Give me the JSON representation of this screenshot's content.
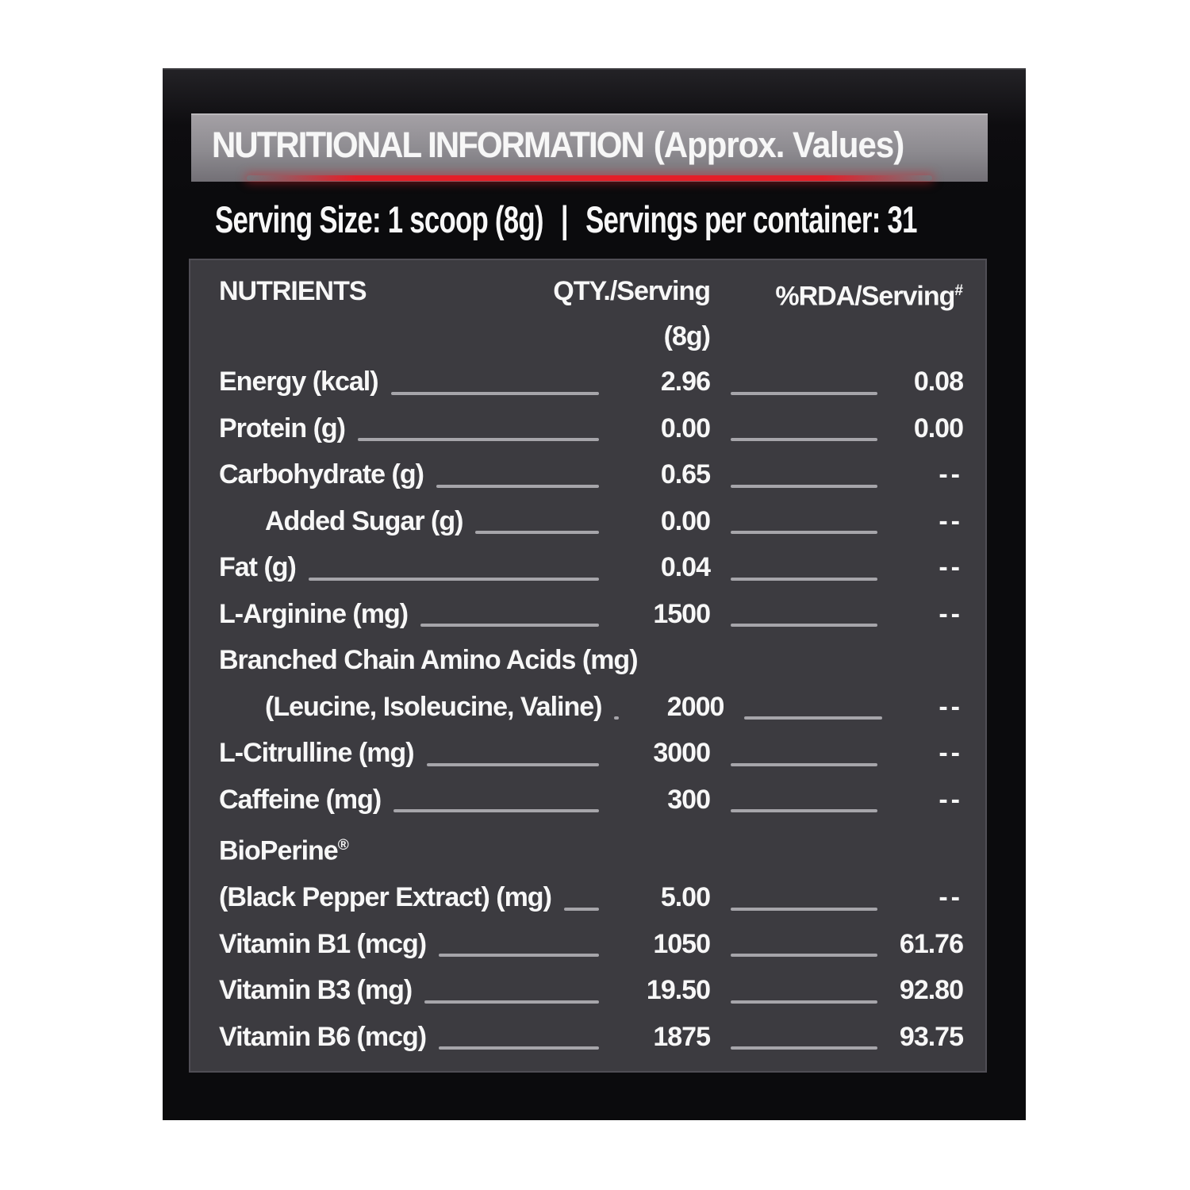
{
  "label": {
    "title_main": "NUTRITIONAL INFORMATION",
    "title_note": "(Approx. Values)",
    "serving": {
      "size_text": "Serving Size: 1 scoop (8g)",
      "separator": "|",
      "container_text": "Servings per container: 31"
    },
    "table": {
      "col_nutrients": "NUTRIENTS",
      "col_qty_line1": "QTY./Serving",
      "col_qty_line2": "(8g)",
      "col_rda": "%RDA/Serving",
      "col_rda_sup": "#",
      "rows": [
        {
          "label": "Energy (kcal)",
          "indent": false,
          "qty": "2.96",
          "rda": "0.08"
        },
        {
          "label": "Protein (g)",
          "indent": false,
          "qty": "0.00",
          "rda": "0.00"
        },
        {
          "label": "Carbohydrate (g)",
          "indent": false,
          "qty": "0.65",
          "rda": "--"
        },
        {
          "label": "Added Sugar (g)",
          "indent": true,
          "qty": "0.00",
          "rda": "--"
        },
        {
          "label": "Fat (g)",
          "indent": false,
          "qty": "0.04",
          "rda": "--"
        },
        {
          "label": "L-Arginine (mg)",
          "indent": false,
          "qty": "1500",
          "rda": "--"
        },
        {
          "label": "Branched Chain Amino Acids (mg)",
          "indent": false,
          "qty": "",
          "rda": ""
        },
        {
          "label": "(Leucine, Isoleucine, Valine)",
          "indent": true,
          "qty": "2000",
          "rda": "--"
        },
        {
          "label": "L-Citrulline (mg)",
          "indent": false,
          "qty": "3000",
          "rda": "--"
        },
        {
          "label": "Caffeine (mg)",
          "indent": false,
          "qty": "300",
          "rda": "--"
        },
        {
          "label": "BioPerine",
          "sup": "®",
          "indent": false,
          "qty": "",
          "rda": ""
        },
        {
          "label": "(Black Pepper Extract) (mg)",
          "indent": false,
          "qty": "5.00",
          "rda": "--"
        },
        {
          "label": "Vitamin B1 (mcg)",
          "indent": false,
          "qty": "1050",
          "rda": "61.76"
        },
        {
          "label": "Vitamin B3 (mg)",
          "indent": false,
          "qty": "19.50",
          "rda": "92.80"
        },
        {
          "label": "Vitamin B6 (mcg)",
          "indent": false,
          "qty": "1875",
          "rda": "93.75"
        }
      ]
    },
    "colors": {
      "accent_red": "#e41e28",
      "header_gray": "#8d8b90",
      "panel_dark": "#3c3b40",
      "outer_black": "#0b0b0d",
      "page_white": "#ffffff",
      "text_white": "#f7f7f7",
      "leader_gray": "#a6a5aa"
    }
  }
}
